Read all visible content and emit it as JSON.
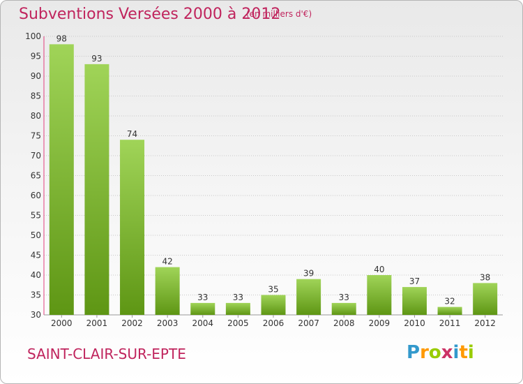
{
  "title": "Subventions Versées 2000 à 2012",
  "subtitle": "(en milliers d'€)",
  "commune": "SAINT-CLAIR-SUR-EPTE",
  "logo": {
    "text": "Proxiti",
    "letters": [
      "P",
      "r",
      "o",
      "x",
      "i",
      "t",
      "i"
    ],
    "colors": [
      "#3399cc",
      "#ff9900",
      "#99cc00",
      "#cc3366",
      "#3399cc",
      "#ff9900",
      "#99cc00"
    ]
  },
  "colors": {
    "title": "#c0245d",
    "bar_light": "#a0d458",
    "bar_dark": "#5e9614",
    "grid": "#c8c8c8",
    "axis_line": "#e23d7d"
  },
  "chart_data": {
    "type": "bar",
    "categories": [
      "2000",
      "2001",
      "2002",
      "2003",
      "2004",
      "2005",
      "2006",
      "2007",
      "2008",
      "2009",
      "2010",
      "2011",
      "2012"
    ],
    "values": [
      98,
      93,
      74,
      42,
      33,
      33,
      35,
      39,
      33,
      40,
      37,
      32,
      38
    ],
    "ylim": [
      30,
      100
    ],
    "yticks": [
      30,
      35,
      40,
      45,
      50,
      55,
      60,
      65,
      70,
      75,
      80,
      85,
      90,
      95,
      100
    ],
    "title": "Subventions Versées 2000 à 2012",
    "grid": true,
    "data_labels": true
  }
}
